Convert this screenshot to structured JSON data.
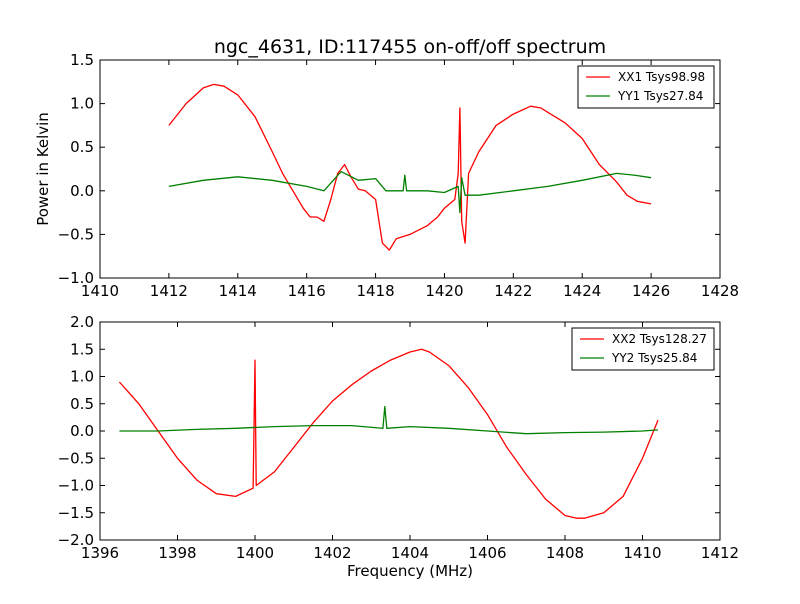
{
  "title": "ngc_4631, ID:117455 on-off/off spectrum",
  "chart_data": [
    {
      "type": "line",
      "xlabel": "",
      "ylabel": "Power in Kelvin",
      "xlim": [
        1410,
        1428
      ],
      "ylim": [
        -1.0,
        1.5
      ],
      "xticks": [
        "1410",
        "1412",
        "1414",
        "1416",
        "1418",
        "1420",
        "1422",
        "1424",
        "1426",
        "1428"
      ],
      "yticks": [
        "−1.0",
        "−0.5",
        "0.0",
        "0.5",
        "1.0",
        "1.5"
      ],
      "grid": false,
      "legend_position": "top-right",
      "series": [
        {
          "name": "XX1 Tsys98.98",
          "color": "#ff0000",
          "x": [
            1412.0,
            1412.5,
            1413.0,
            1413.3,
            1413.6,
            1414.0,
            1414.5,
            1415.0,
            1415.3,
            1415.6,
            1415.9,
            1416.1,
            1416.3,
            1416.5,
            1416.7,
            1416.9,
            1417.1,
            1417.3,
            1417.5,
            1417.7,
            1418.0,
            1418.2,
            1418.4,
            1418.6,
            1419.0,
            1419.5,
            1419.8,
            1420.0,
            1420.3,
            1420.4,
            1420.45,
            1420.5,
            1420.6,
            1420.7,
            1421.0,
            1421.5,
            1422.0,
            1422.5,
            1422.8,
            1423.0,
            1423.5,
            1424.0,
            1424.5,
            1425.0,
            1425.3,
            1425.6,
            1426.0
          ],
          "y": [
            0.75,
            1.0,
            1.18,
            1.22,
            1.2,
            1.1,
            0.85,
            0.45,
            0.2,
            0.0,
            -0.2,
            -0.3,
            -0.3,
            -0.35,
            -0.1,
            0.2,
            0.3,
            0.15,
            0.02,
            0.0,
            -0.1,
            -0.6,
            -0.68,
            -0.55,
            -0.5,
            -0.4,
            -0.3,
            -0.2,
            -0.1,
            0.2,
            0.95,
            -0.35,
            -0.6,
            0.2,
            0.45,
            0.75,
            0.88,
            0.97,
            0.95,
            0.9,
            0.78,
            0.6,
            0.3,
            0.1,
            -0.05,
            -0.12,
            -0.15
          ]
        },
        {
          "name": "YY1 Tsys27.84",
          "color": "#008000",
          "x": [
            1412.0,
            1413.0,
            1414.0,
            1415.0,
            1416.0,
            1416.5,
            1417.0,
            1417.5,
            1418.0,
            1418.3,
            1418.8,
            1418.85,
            1418.9,
            1419.5,
            1420.0,
            1420.4,
            1420.45,
            1420.5,
            1420.6,
            1421.0,
            1422.0,
            1423.0,
            1424.0,
            1425.0,
            1425.5,
            1426.0
          ],
          "y": [
            0.05,
            0.12,
            0.16,
            0.12,
            0.05,
            0.0,
            0.22,
            0.12,
            0.14,
            0.0,
            0.0,
            0.18,
            0.0,
            0.0,
            -0.02,
            0.05,
            -0.25,
            0.15,
            -0.05,
            -0.05,
            0.0,
            0.05,
            0.12,
            0.2,
            0.18,
            0.15
          ]
        }
      ]
    },
    {
      "type": "line",
      "xlabel": "Frequency (MHz)",
      "ylabel": "",
      "xlim": [
        1396,
        1412
      ],
      "ylim": [
        -2.0,
        2.0
      ],
      "xticks": [
        "1396",
        "1398",
        "1400",
        "1402",
        "1404",
        "1406",
        "1408",
        "1410",
        "1412"
      ],
      "yticks": [
        "−2.0",
        "−1.5",
        "−1.0",
        "−0.5",
        "0.0",
        "0.5",
        "1.0",
        "1.5",
        "2.0"
      ],
      "grid": false,
      "legend_position": "top-right",
      "series": [
        {
          "name": "XX2 Tsys128.27",
          "color": "#ff0000",
          "x": [
            1396.5,
            1397.0,
            1397.5,
            1398.0,
            1398.5,
            1399.0,
            1399.5,
            1399.95,
            1400.0,
            1400.03,
            1400.5,
            1401.0,
            1401.5,
            1402.0,
            1402.5,
            1403.0,
            1403.5,
            1404.0,
            1404.3,
            1404.5,
            1405.0,
            1405.5,
            1406.0,
            1406.5,
            1407.0,
            1407.5,
            1408.0,
            1408.3,
            1408.5,
            1409.0,
            1409.5,
            1410.0,
            1410.4
          ],
          "y": [
            0.9,
            0.5,
            0.0,
            -0.5,
            -0.9,
            -1.15,
            -1.2,
            -1.05,
            1.3,
            -1.0,
            -0.75,
            -0.3,
            0.15,
            0.55,
            0.85,
            1.1,
            1.3,
            1.45,
            1.5,
            1.45,
            1.2,
            0.8,
            0.3,
            -0.3,
            -0.8,
            -1.25,
            -1.55,
            -1.6,
            -1.6,
            -1.5,
            -1.2,
            -0.5,
            0.2
          ]
        },
        {
          "name": "YY2 Tsys25.84",
          "color": "#008000",
          "x": [
            1396.5,
            1397.5,
            1398.5,
            1399.5,
            1400.5,
            1401.5,
            1402.5,
            1403.3,
            1403.35,
            1403.4,
            1404.0,
            1405.0,
            1406.0,
            1407.0,
            1408.0,
            1409.0,
            1410.0,
            1410.4
          ],
          "y": [
            0.0,
            0.0,
            0.03,
            0.05,
            0.08,
            0.1,
            0.1,
            0.05,
            0.45,
            0.05,
            0.08,
            0.05,
            0.0,
            -0.05,
            -0.03,
            -0.02,
            0.0,
            0.02
          ]
        }
      ]
    }
  ]
}
